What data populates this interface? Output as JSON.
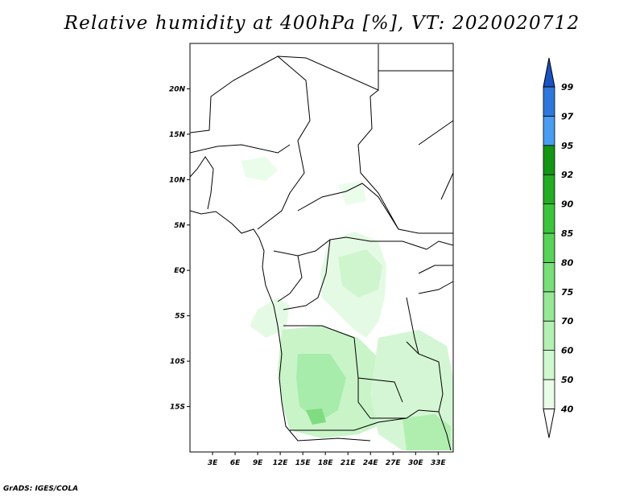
{
  "title": "Relative humidity at 400hPa [%], VT: 2020020712",
  "credit": "GrADS: IGES/COLA",
  "map": {
    "lon_range": [
      0,
      35
    ],
    "lat_range": [
      -20,
      25
    ],
    "lat_ticks": [
      {
        "value": 20,
        "label": "20N"
      },
      {
        "value": 15,
        "label": "15N"
      },
      {
        "value": 10,
        "label": "10N"
      },
      {
        "value": 5,
        "label": "5N"
      },
      {
        "value": 0,
        "label": "EQ"
      },
      {
        "value": -5,
        "label": "5S"
      },
      {
        "value": -10,
        "label": "10S"
      },
      {
        "value": -15,
        "label": "15S"
      }
    ],
    "lon_ticks": [
      {
        "value": 3,
        "label": "3E"
      },
      {
        "value": 6,
        "label": "6E"
      },
      {
        "value": 9,
        "label": "9E"
      },
      {
        "value": 12,
        "label": "12E"
      },
      {
        "value": 15,
        "label": "15E"
      },
      {
        "value": 18,
        "label": "18E"
      },
      {
        "value": 21,
        "label": "21E"
      },
      {
        "value": 24,
        "label": "24E"
      },
      {
        "value": 27,
        "label": "27E"
      },
      {
        "value": 30,
        "label": "30E"
      },
      {
        "value": 33,
        "label": "33E"
      }
    ]
  },
  "colorbar": {
    "levels": [
      "40",
      "50",
      "60",
      "70",
      "75",
      "80",
      "85",
      "90",
      "92",
      "95",
      "97",
      "99"
    ],
    "colors": [
      "#e8fce8",
      "#d0f8d0",
      "#b4f0b4",
      "#96e896",
      "#78de78",
      "#58d258",
      "#3cc43c",
      "#24ac24",
      "#149614",
      "#4a9cf0",
      "#2e78dc",
      "#1a52c0"
    ]
  }
}
